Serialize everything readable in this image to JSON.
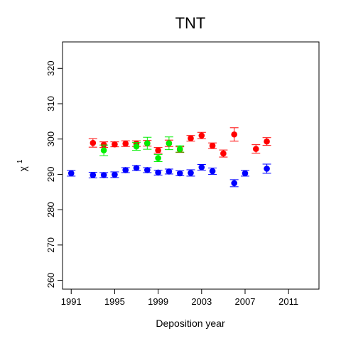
{
  "chart_data": {
    "type": "scatter",
    "title": "TNT",
    "xlabel": "Deposition year",
    "ylabel": "χ",
    "ylabel_superscript": "1",
    "xlim": [
      1990.2,
      2013.8
    ],
    "ylim": [
      257.5,
      327.5
    ],
    "x_ticks": [
      1991,
      1995,
      1999,
      2003,
      2007,
      2011
    ],
    "x_tick_labels": [
      "1991",
      "1995",
      "1999",
      "2003",
      "2007",
      "2011"
    ],
    "y_ticks": [
      260,
      270,
      280,
      290,
      300,
      310,
      320
    ],
    "y_tick_labels": [
      "260",
      "270",
      "280",
      "290",
      "300",
      "310",
      "320"
    ],
    "grid": false,
    "series": [
      {
        "color": "#0000ff",
        "points": [
          {
            "x": 1991,
            "y": 290.3,
            "err": 0.8
          },
          {
            "x": 1993,
            "y": 289.8,
            "err": 0.8
          },
          {
            "x": 1994,
            "y": 289.8,
            "err": 0.7
          },
          {
            "x": 1995,
            "y": 289.9,
            "err": 0.8
          },
          {
            "x": 1996,
            "y": 291.2,
            "err": 0.7
          },
          {
            "x": 1997,
            "y": 291.8,
            "err": 0.7
          },
          {
            "x": 1998,
            "y": 291.2,
            "err": 0.7
          },
          {
            "x": 1999,
            "y": 290.5,
            "err": 0.7
          },
          {
            "x": 2000,
            "y": 290.8,
            "err": 0.7
          },
          {
            "x": 2001,
            "y": 290.3,
            "err": 0.7
          },
          {
            "x": 2002,
            "y": 290.4,
            "err": 0.9
          },
          {
            "x": 2003,
            "y": 292.0,
            "err": 0.8
          },
          {
            "x": 2004,
            "y": 290.9,
            "err": 0.9
          },
          {
            "x": 2006,
            "y": 287.5,
            "err": 1.0
          },
          {
            "x": 2007,
            "y": 290.3,
            "err": 0.8
          },
          {
            "x": 2009,
            "y": 291.6,
            "err": 1.3
          }
        ]
      },
      {
        "color": "#ff0000",
        "points": [
          {
            "x": 1993,
            "y": 298.9,
            "err": 1.2
          },
          {
            "x": 1994,
            "y": 298.4,
            "err": 0.8
          },
          {
            "x": 1995,
            "y": 298.5,
            "err": 0.7
          },
          {
            "x": 1996,
            "y": 298.7,
            "err": 0.8
          },
          {
            "x": 1997,
            "y": 298.7,
            "err": 0.8
          },
          {
            "x": 1998,
            "y": 298.8,
            "err": 0.8
          },
          {
            "x": 1999,
            "y": 296.8,
            "err": 0.8
          },
          {
            "x": 2000,
            "y": 298.8,
            "err": 0.9
          },
          {
            "x": 2001,
            "y": 297.0,
            "err": 0.8
          },
          {
            "x": 2002,
            "y": 300.2,
            "err": 0.8
          },
          {
            "x": 2003,
            "y": 301.0,
            "err": 0.9
          },
          {
            "x": 2004,
            "y": 298.1,
            "err": 0.8
          },
          {
            "x": 2005,
            "y": 295.9,
            "err": 1.0
          },
          {
            "x": 2006,
            "y": 301.3,
            "err": 1.9
          },
          {
            "x": 2008,
            "y": 297.2,
            "err": 1.2
          },
          {
            "x": 2009,
            "y": 299.3,
            "err": 1.1
          }
        ]
      },
      {
        "color": "#00ee00",
        "points": [
          {
            "x": 1994,
            "y": 296.8,
            "err": 1.5
          },
          {
            "x": 1997,
            "y": 297.9,
            "err": 1.1
          },
          {
            "x": 1998,
            "y": 298.8,
            "err": 1.7
          },
          {
            "x": 1999,
            "y": 294.6,
            "err": 1.0
          },
          {
            "x": 2000,
            "y": 298.8,
            "err": 1.8
          },
          {
            "x": 2001,
            "y": 297.2,
            "err": 0.9
          }
        ]
      }
    ]
  }
}
